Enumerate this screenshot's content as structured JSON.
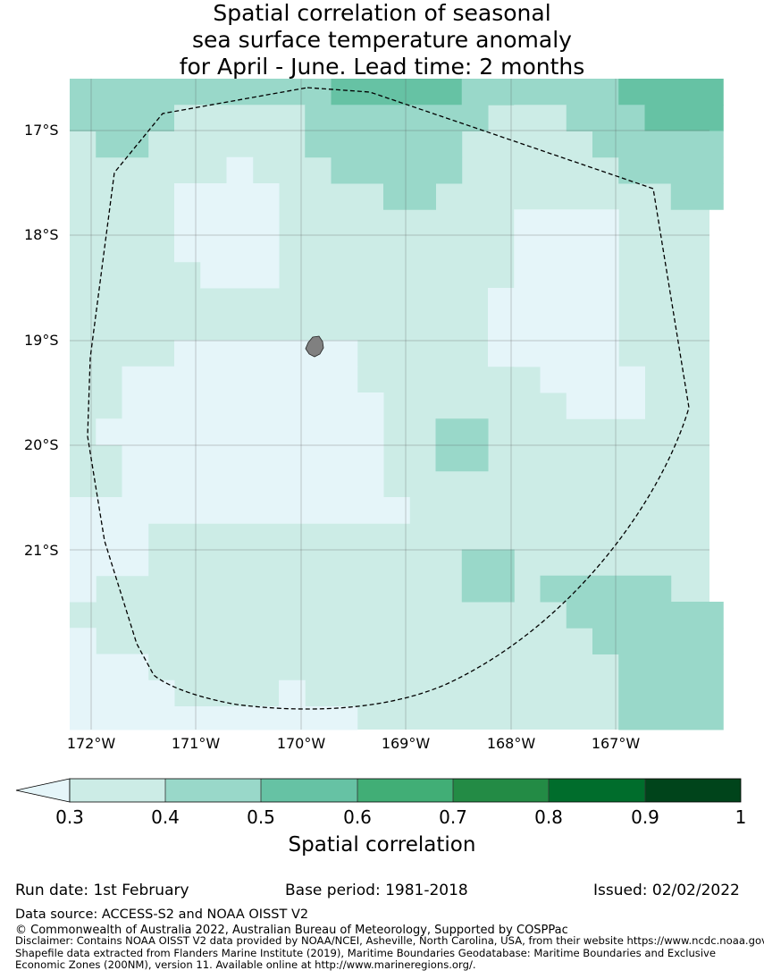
{
  "title": {
    "line1": "Spatial correlation of seasonal",
    "line2": "sea surface temperature anomaly",
    "line3": "for April - June. Lead time: 2 months"
  },
  "map": {
    "latitude_labels": [
      "17°S",
      "18°S",
      "19°S",
      "20°S",
      "21°S"
    ],
    "longitude_labels": [
      "172°W",
      "171°W",
      "170°W",
      "169°W",
      "168°W",
      "167°W"
    ],
    "colors": {
      "0.3-0.4": "#ccece6",
      "0.4-0.5": "#99d8c9",
      "0.5-0.6": "#66c2a4",
      "below-0.3": "#e5f5f9",
      "land": "#808080",
      "boundary": "#000000",
      "gridline": "#555555"
    }
  },
  "colorbar": {
    "label": "Spatial correlation",
    "ticks": [
      "0.3",
      "0.4",
      "0.5",
      "0.6",
      "0.7",
      "0.8",
      "0.9",
      "1"
    ],
    "colors": [
      "#ccece6",
      "#99d8c9",
      "#66c2a4",
      "#41ae76",
      "#238b45",
      "#006d2c",
      "#00441b"
    ],
    "extend_color": "#e5f5f9"
  },
  "footer": {
    "run_date": "Run date: 1st February",
    "base_period": "Base period: 1981-2018",
    "issued": "Issued: 02/02/2022",
    "data_source": "Data source: ACCESS-S2 and NOAA OISST V2",
    "copyright": "© Commonwealth of Australia 2022, Australian Bureau of Meteorology, Supported by COSPPac",
    "disclaimer_line1": "Disclaimer: Contains NOAA OISST V2 data provided by NOAA/NCEI, Asheville, North Carolina, USA, from their website https://www.ncdc.noaa.gov",
    "disclaimer_line2": "Shapefile data extracted from Flanders Marine Institute (2019), Maritime Boundaries Geodatabase: Maritime Boundaries and Exclusive",
    "disclaimer_line3": "Economic Zones (200NM), version 11. Available online at http://www.marineregions.org/."
  }
}
